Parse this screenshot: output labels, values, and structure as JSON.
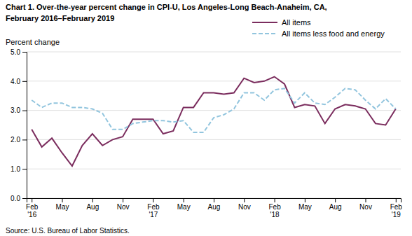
{
  "chart_data": {
    "type": "line",
    "title": "Chart 1. Over-the-year percent change in CPI-U, Los Angeles-Long Beach-Anaheim, CA,\nFebruary 2016–February 2019",
    "y_label": "Percent change",
    "annotations": [
      "Source: U.S. Bureau of Labor Statistics."
    ],
    "categories": [
      "Feb\n'16",
      null,
      null,
      "May",
      null,
      null,
      "Aug",
      null,
      null,
      "Nov",
      null,
      null,
      "Feb\n'17",
      null,
      null,
      "May",
      null,
      null,
      "Aug",
      null,
      null,
      "Nov",
      null,
      null,
      "Feb\n'18",
      null,
      null,
      "May",
      null,
      null,
      "Aug",
      null,
      null,
      "Nov",
      null,
      null,
      "Feb\n'19"
    ],
    "series": [
      {
        "name": "All items",
        "color": "#7B2D5E",
        "line_style": "solid",
        "values": [
          2.35,
          1.75,
          2.05,
          1.55,
          1.1,
          1.8,
          2.2,
          1.8,
          2.0,
          2.1,
          2.7,
          2.7,
          2.7,
          2.2,
          2.3,
          3.1,
          3.1,
          3.6,
          3.6,
          3.55,
          3.6,
          4.1,
          3.95,
          4.0,
          4.15,
          3.9,
          3.1,
          3.2,
          3.15,
          2.55,
          3.05,
          3.2,
          3.15,
          3.05,
          2.55,
          2.5,
          3.05
        ]
      },
      {
        "name": "All items less food and energy",
        "color": "#92C5DE",
        "line_style": "dashed",
        "values": [
          3.35,
          3.1,
          3.25,
          3.25,
          3.1,
          3.1,
          3.05,
          2.9,
          2.35,
          2.35,
          2.55,
          2.6,
          2.65,
          2.65,
          2.6,
          2.65,
          2.25,
          2.25,
          2.75,
          2.85,
          3.05,
          3.6,
          3.6,
          3.35,
          3.7,
          3.75,
          3.25,
          3.6,
          3.25,
          3.2,
          3.45,
          3.75,
          3.7,
          3.35,
          3.05,
          3.4,
          3.05
        ]
      }
    ],
    "ylim": [
      0.0,
      5.0
    ],
    "yticks": [
      {
        "value": 0.0,
        "label": "0.0"
      },
      {
        "value": 1.0,
        "label": "1.0"
      },
      {
        "value": 2.0,
        "label": "2.0"
      },
      {
        "value": 3.0,
        "label": "3.0"
      },
      {
        "value": 4.0,
        "label": "4.0"
      },
      {
        "value": 5.0,
        "label": "5.0"
      }
    ],
    "grid": true,
    "legend": "top-right"
  }
}
